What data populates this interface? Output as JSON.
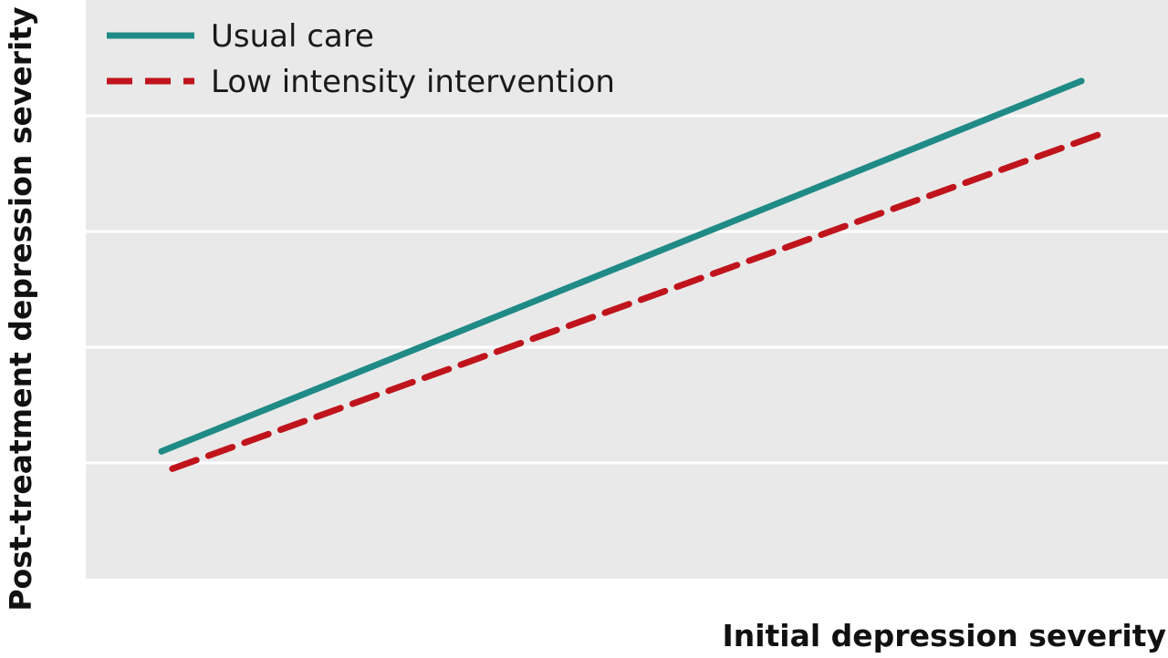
{
  "chart_data": {
    "type": "line",
    "title": "",
    "xlabel": "Initial depression severity",
    "ylabel": "Post-treatment depression severity",
    "xlim": [
      0,
      100
    ],
    "ylim": [
      0,
      100
    ],
    "grid": true,
    "legend_position": "top-left",
    "series": [
      {
        "name": "Usual care",
        "style": "solid",
        "color": "#1f8a86",
        "x": [
          7,
          92
        ],
        "y": [
          22,
          86
        ]
      },
      {
        "name": "Low intensity intervention",
        "style": "dashed",
        "color": "#c0141c",
        "x": [
          8,
          94
        ],
        "y": [
          19,
          77
        ]
      }
    ]
  },
  "colors": {
    "plot_background": "#e9e9e9",
    "gridline": "#ffffff"
  }
}
